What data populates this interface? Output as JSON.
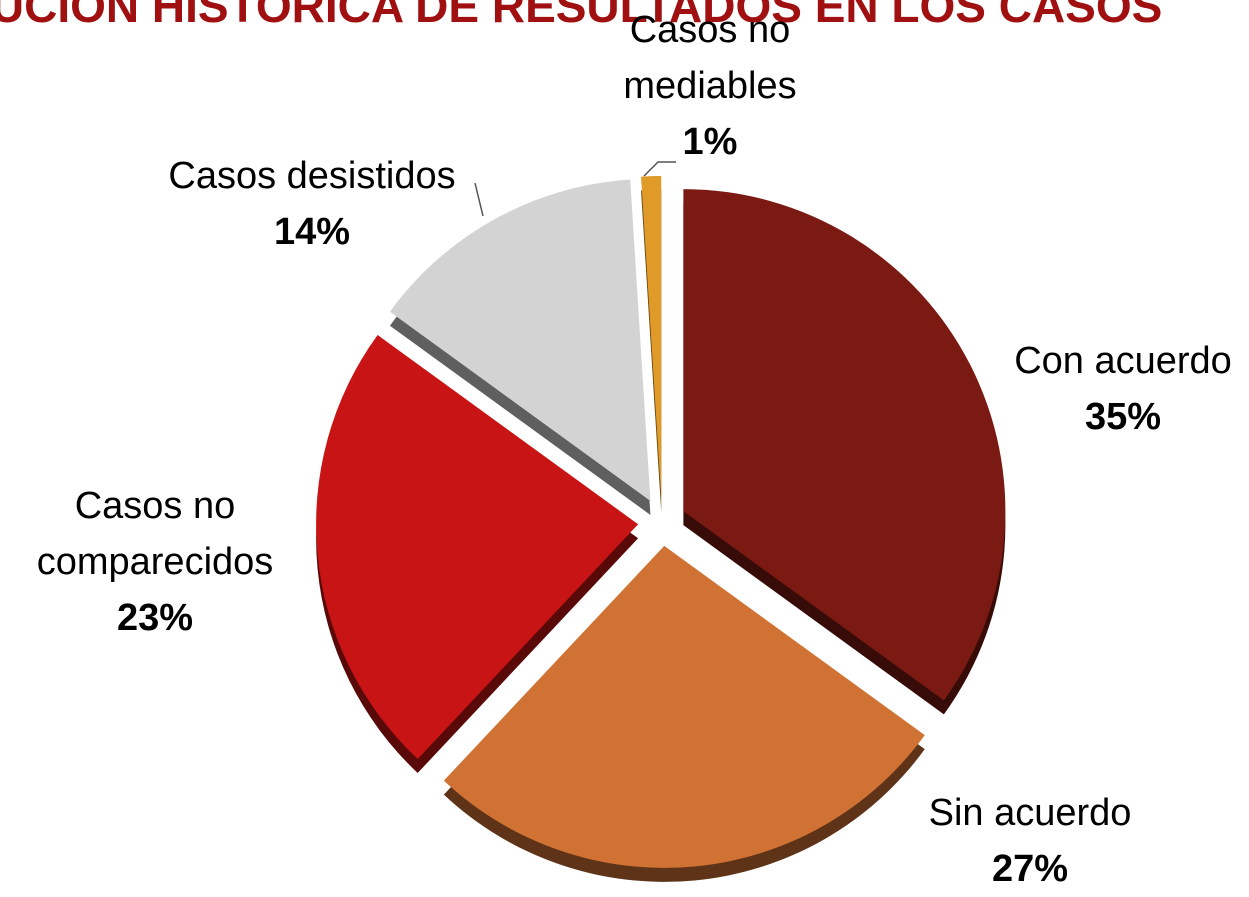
{
  "chart_data": {
    "type": "pie",
    "title": "BUCION HISTORICA DE RESULTADOS EN LOS CASOS",
    "categories": [
      "Con acuerdo",
      "Sin acuerdo",
      "Casos no comparecidos",
      "Casos desistidos",
      "Casos no mediables"
    ],
    "values": [
      35,
      27,
      23,
      14,
      1
    ],
    "value_labels": [
      "35%",
      "27%",
      "23%",
      "14%",
      "1%"
    ],
    "colors": [
      "#7b1a12",
      "#d07234",
      "#c81414",
      "#d3d3d3",
      "#e09a28"
    ]
  }
}
